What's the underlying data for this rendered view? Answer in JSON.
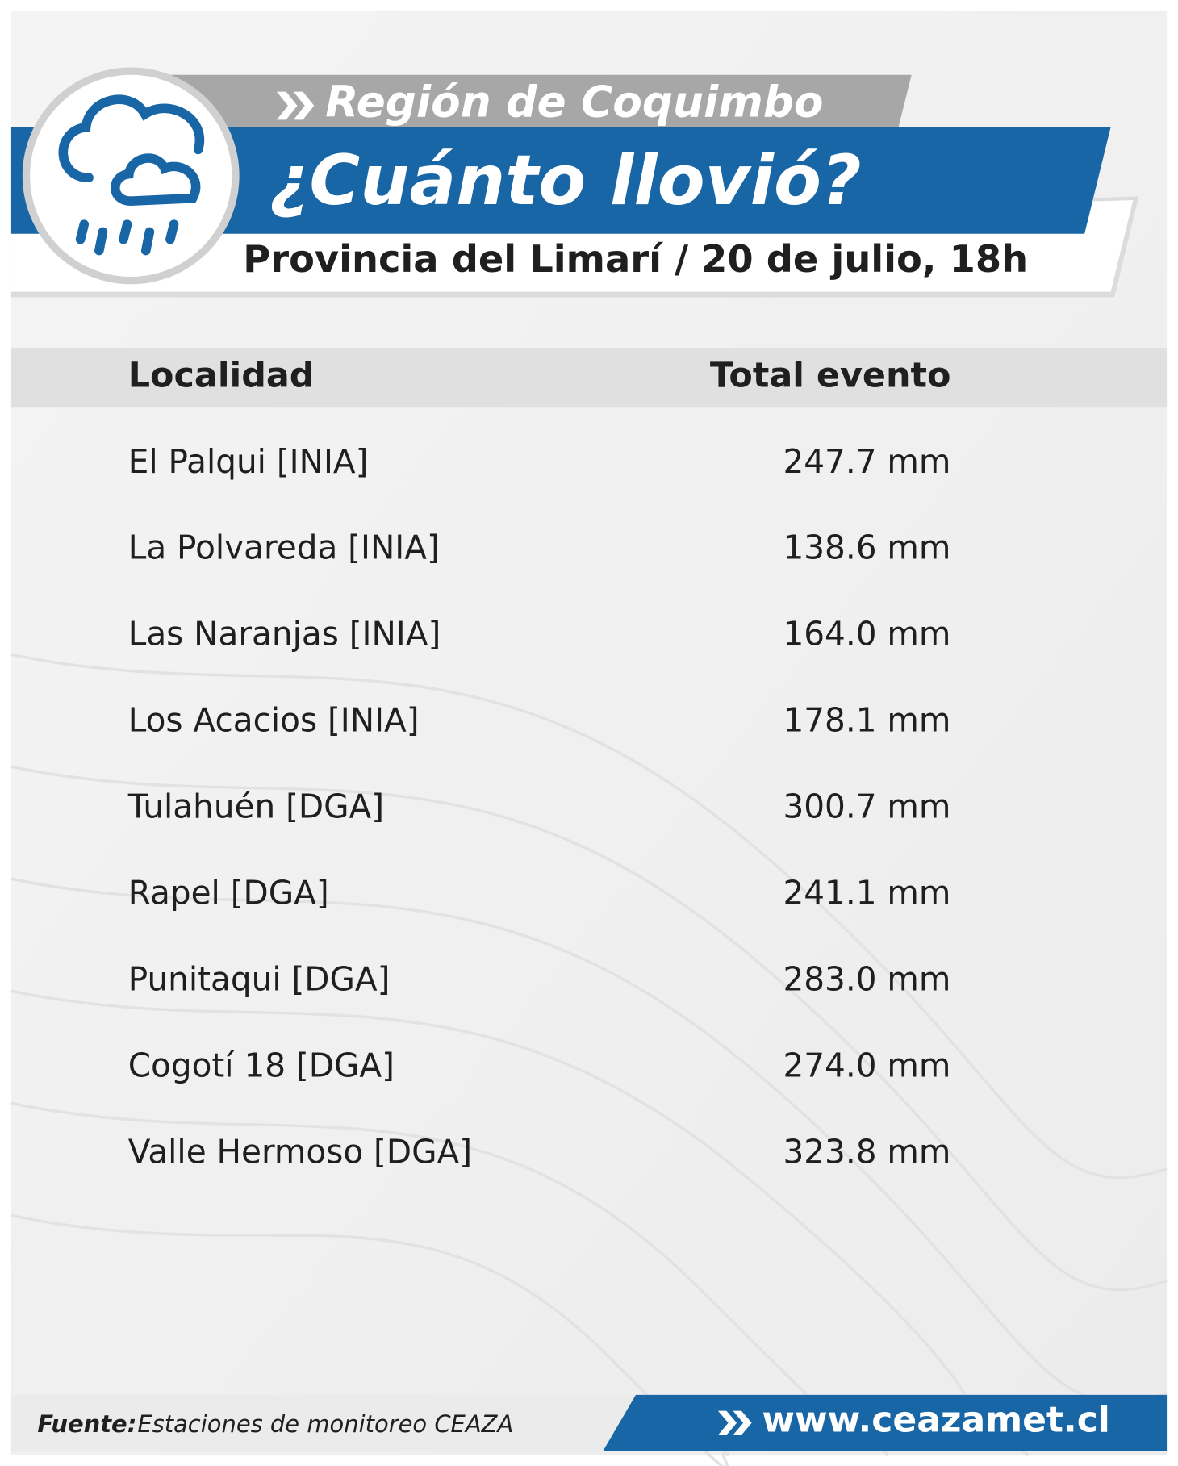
{
  "header": {
    "region": "Región de Coquimbo",
    "title": "¿Cuánto llovió?",
    "subtitle": "Provincia del Limarí / 20 de julio, 18h"
  },
  "table": {
    "columns": [
      "Localidad",
      "Total evento"
    ],
    "rows": [
      [
        "El Palqui [INIA]",
        "247.7 mm"
      ],
      [
        "La Polvareda [INIA]",
        "138.6 mm"
      ],
      [
        "Las Naranjas [INIA]",
        "164.0 mm"
      ],
      [
        "Los Acacios [INIA]",
        "178.1 mm"
      ],
      [
        "Tulahuén [DGA]",
        "300.7 mm"
      ],
      [
        "Rapel [DGA]",
        "241.1 mm"
      ],
      [
        "Punitaqui [DGA]",
        "283.0 mm"
      ],
      [
        "Cogotí 18 [DGA]",
        "274.0 mm"
      ],
      [
        "Valle Hermoso [DGA]",
        "323.8 mm"
      ]
    ]
  },
  "footer": {
    "source_label": "Fuente:",
    "source": "Estaciones de monitoreo CEAZA",
    "url": "www.ceazamet.cl"
  }
}
